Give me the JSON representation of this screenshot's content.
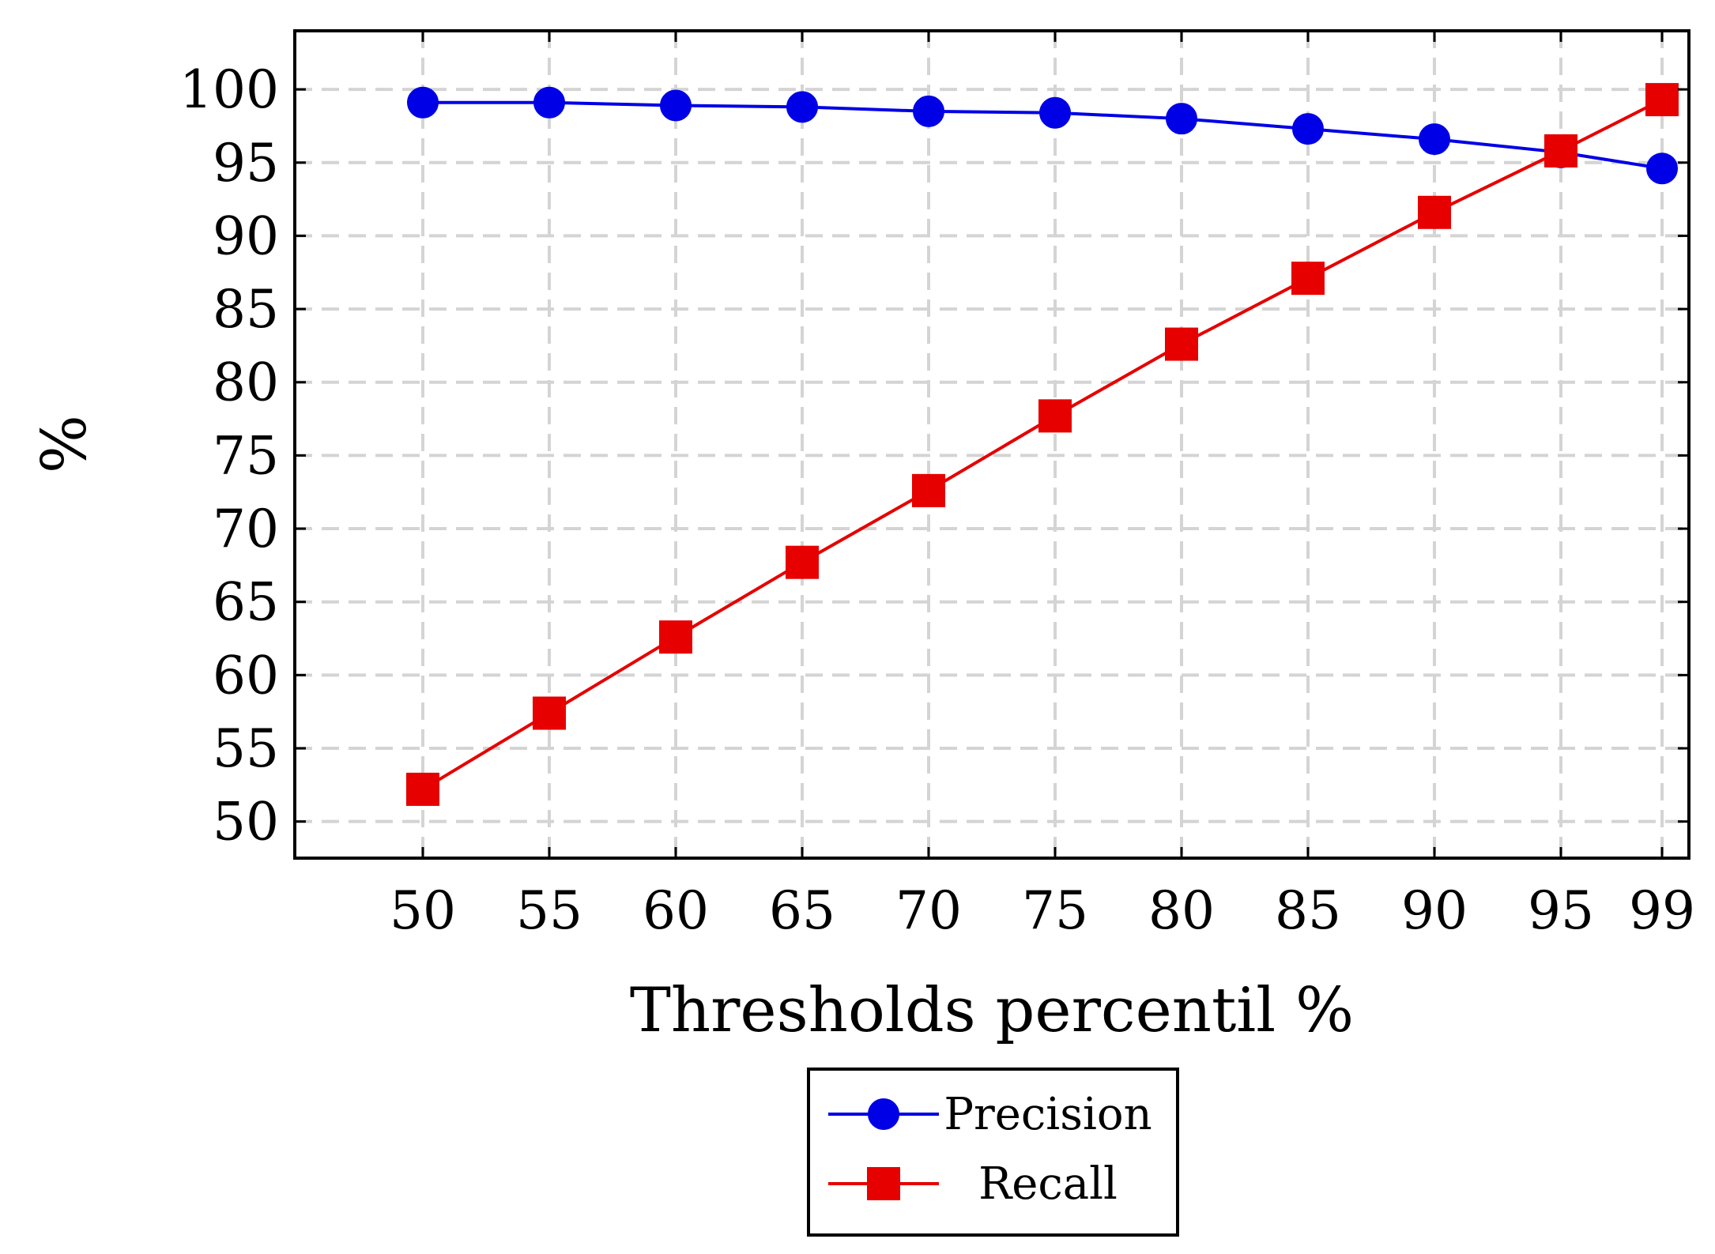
{
  "chart_data": {
    "type": "line",
    "title": "",
    "xlabel": "Thresholds percentil %",
    "ylabel": "%",
    "categories": [
      "50",
      "55",
      "60",
      "65",
      "70",
      "75",
      "80",
      "85",
      "90",
      "95",
      "99"
    ],
    "ylim": [
      47.5,
      104
    ],
    "yticks": [
      50,
      55,
      60,
      65,
      70,
      75,
      80,
      85,
      90,
      95,
      100
    ],
    "grid": true,
    "legend_position": "bottom-center",
    "series": [
      {
        "name": "Precision",
        "color": "#0000e6",
        "marker": "circle",
        "values": [
          99.1,
          99.1,
          98.9,
          98.8,
          98.5,
          98.4,
          98.0,
          97.3,
          96.6,
          95.7,
          94.6
        ]
      },
      {
        "name": "Recall",
        "color": "#e60000",
        "marker": "square",
        "values": [
          52.2,
          57.4,
          62.6,
          67.7,
          72.6,
          77.7,
          82.6,
          87.1,
          91.6,
          95.8,
          99.3
        ]
      }
    ]
  }
}
